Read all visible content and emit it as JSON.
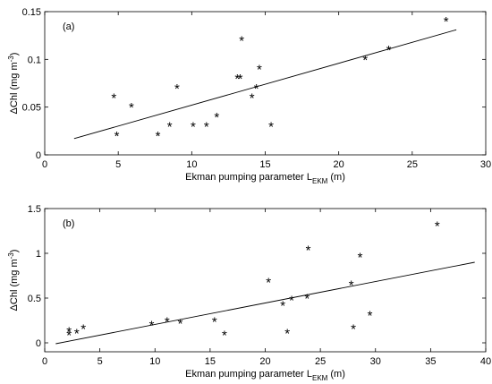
{
  "chart_data": [
    {
      "type": "scatter",
      "panel_label": "(a)",
      "xlabel": {
        "main": "Ekman pumping parameter L",
        "sub": "EKM",
        "unit": " (m)"
      },
      "ylabel": {
        "main": "ΔChl (mg m",
        "sup": "-3",
        "close": ")"
      },
      "xlim": [
        0,
        30
      ],
      "ylim": [
        0,
        0.15
      ],
      "xticks": [
        0,
        5,
        10,
        15,
        20,
        25,
        30
      ],
      "xtick_labels": [
        "0",
        "5",
        "10",
        "15",
        "20",
        "25",
        "30"
      ],
      "yticks": [
        0,
        0.05,
        0.1,
        0.15
      ],
      "ytick_labels": [
        "0",
        "0.05",
        "0.1",
        "0.15"
      ],
      "marker": "*",
      "grid": false,
      "points": [
        [
          4.7,
          0.06
        ],
        [
          4.9,
          0.02
        ],
        [
          5.9,
          0.05
        ],
        [
          7.7,
          0.02
        ],
        [
          8.5,
          0.03
        ],
        [
          9.0,
          0.07
        ],
        [
          10.1,
          0.03
        ],
        [
          11.0,
          0.03
        ],
        [
          11.7,
          0.04
        ],
        [
          13.1,
          0.08
        ],
        [
          13.3,
          0.08
        ],
        [
          13.4,
          0.12
        ],
        [
          14.1,
          0.06
        ],
        [
          14.4,
          0.07
        ],
        [
          14.6,
          0.09
        ],
        [
          15.4,
          0.03
        ],
        [
          21.8,
          0.1
        ],
        [
          23.4,
          0.11
        ],
        [
          27.3,
          0.14
        ]
      ],
      "fit_line": {
        "x": [
          2,
          28
        ],
        "y": [
          0.017,
          0.131
        ]
      }
    },
    {
      "type": "scatter",
      "panel_label": "(b)",
      "xlabel": {
        "main": "Ekman pumping parameter L",
        "sub": "EKM",
        "unit": " (m)"
      },
      "ylabel": {
        "main": "ΔChl (mg m",
        "sup": "-3",
        "close": ")"
      },
      "xlim": [
        0,
        40
      ],
      "ylim": [
        -0.1,
        1.5
      ],
      "xticks": [
        0,
        5,
        10,
        15,
        20,
        25,
        30,
        35,
        40
      ],
      "xtick_labels": [
        "0",
        "5",
        "10",
        "15",
        "20",
        "25",
        "30",
        "35",
        "40"
      ],
      "yticks": [
        0,
        0.5,
        1,
        1.5
      ],
      "ytick_labels": [
        "0",
        "0.5",
        "1",
        "1.5"
      ],
      "marker": "*",
      "grid": false,
      "points": [
        [
          2.2,
          0.13
        ],
        [
          2.2,
          0.09
        ],
        [
          2.9,
          0.11
        ],
        [
          3.5,
          0.16
        ],
        [
          9.7,
          0.2
        ],
        [
          11.1,
          0.24
        ],
        [
          12.3,
          0.22
        ],
        [
          15.4,
          0.24
        ],
        [
          16.3,
          0.09
        ],
        [
          20.3,
          0.68
        ],
        [
          21.6,
          0.42
        ],
        [
          22.0,
          0.11
        ],
        [
          22.4,
          0.48
        ],
        [
          23.8,
          0.5
        ],
        [
          23.9,
          1.04
        ],
        [
          27.8,
          0.65
        ],
        [
          28.0,
          0.16
        ],
        [
          28.6,
          0.96
        ],
        [
          29.5,
          0.31
        ],
        [
          35.6,
          1.31
        ]
      ],
      "fit_line": {
        "x": [
          1,
          39
        ],
        "y": [
          -0.01,
          0.9
        ]
      }
    }
  ]
}
